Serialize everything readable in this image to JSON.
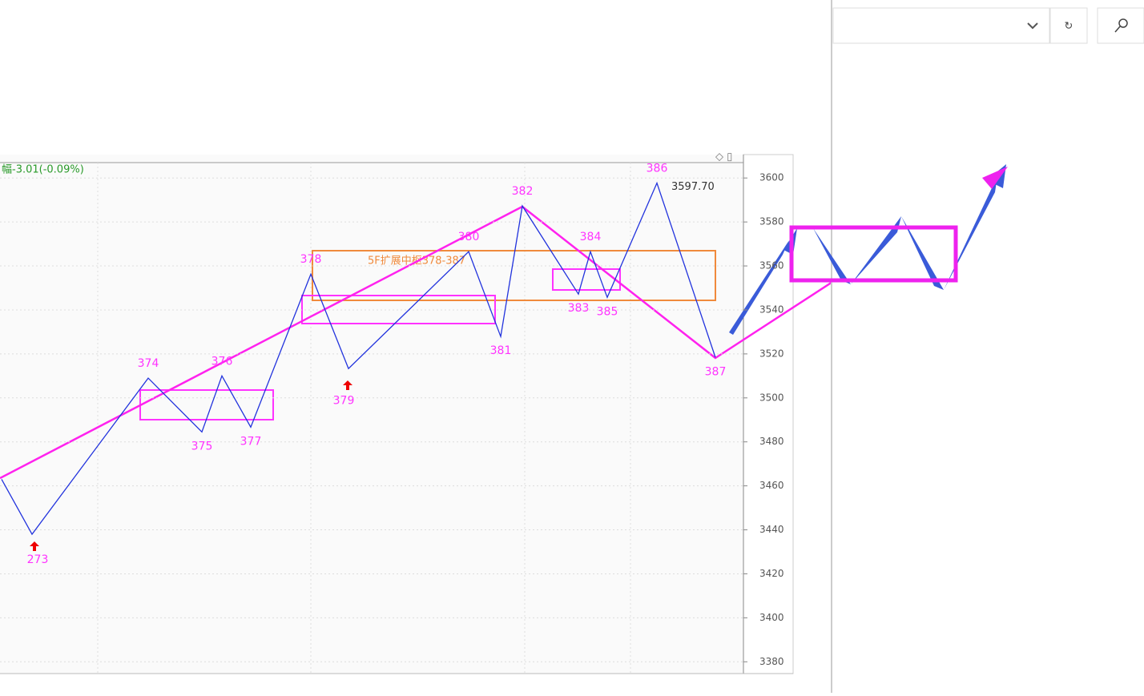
{
  "chart_data": {
    "type": "line",
    "categories": [
      null,
      "273",
      "374",
      "375",
      "376",
      "377",
      "378",
      "379",
      "380",
      "381",
      "382",
      "383",
      "384",
      "385",
      "386",
      "387"
    ],
    "series": [
      {
        "color": "#2233dd",
        "values": [
          3463,
          3438,
          3509,
          3484.5,
          3510,
          3486.7,
          3556.3,
          3513.3,
          3566.5,
          3527.9,
          3587.3,
          3547.2,
          3566.5,
          3545.7,
          3597.7,
          3518.4
        ]
      }
    ],
    "ylim": [
      3375,
      3607
    ],
    "yticks": [
      3380,
      3400,
      3420,
      3440,
      3460,
      3480,
      3500,
      3520,
      3540,
      3560,
      3580,
      3600
    ],
    "grid": true,
    "annotations": [
      "幅-3.01(-0.09%)",
      "5F扩展中枢378-387",
      "3597.70"
    ]
  }
}
